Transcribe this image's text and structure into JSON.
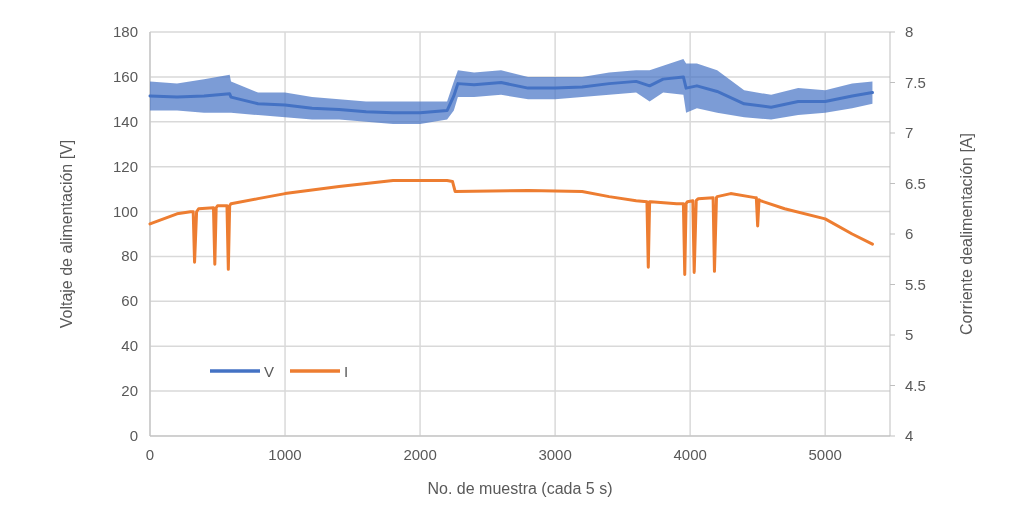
{
  "chart_data": {
    "type": "line",
    "xlabel": "No. de muestra (cada 5 s)",
    "ylabel": "Voltaje de alimentación [V]",
    "y2label": "Corriente  dealimentación [A]",
    "xlim": [
      0,
      5480
    ],
    "xticks": [
      0,
      1000,
      2000,
      3000,
      4000,
      5000
    ],
    "ylim": [
      0,
      180
    ],
    "yticks": [
      0,
      20,
      40,
      60,
      80,
      100,
      120,
      140,
      160,
      180
    ],
    "y2lim": [
      4,
      8
    ],
    "y2ticks": [
      4,
      4.5,
      5,
      5.5,
      6,
      6.5,
      7,
      7.5,
      8
    ],
    "grid": true,
    "legend": "bottom left",
    "line_style": "solid",
    "series": [
      {
        "name": "V",
        "color": "#4472c4",
        "x": [
          0,
          200,
          400,
          590,
          600,
          800,
          1000,
          1200,
          1400,
          1600,
          1800,
          2000,
          2200,
          2250,
          2280,
          2400,
          2600,
          2800,
          3000,
          3200,
          3400,
          3600,
          3700,
          3800,
          3950,
          3970,
          4050,
          4200,
          4400,
          4600,
          4800,
          5000,
          5200,
          5350
        ],
        "values": [
          151.5,
          151,
          151.5,
          152.5,
          151,
          148,
          147.5,
          146,
          145.5,
          144.5,
          144,
          144,
          145,
          151.5,
          157,
          156.5,
          157.5,
          155,
          155,
          155.5,
          157,
          158,
          156,
          159,
          160,
          155,
          156,
          153.5,
          148,
          146.5,
          149,
          149,
          151.5,
          153
        ],
        "lower": [
          145,
          145,
          144,
          144,
          144,
          143,
          142,
          141,
          141,
          140,
          139,
          139,
          141,
          145,
          151,
          151,
          152,
          150,
          150,
          151,
          152,
          153,
          149,
          153,
          152,
          144,
          146,
          144,
          142,
          141,
          143,
          144,
          146,
          148
        ],
        "upper": [
          158,
          157,
          159,
          161,
          158,
          153,
          153,
          151,
          150,
          149,
          149,
          149,
          149,
          158,
          163,
          162,
          163,
          160,
          160,
          160,
          162,
          163,
          163,
          165,
          168,
          166,
          166,
          163,
          154,
          152,
          155,
          154,
          157,
          158
        ]
      },
      {
        "name": "I",
        "color": "#ed7d31",
        "axis": "y2",
        "x": [
          0,
          200,
          300,
          320,
          330,
          345,
          360,
          470,
          480,
          490,
          500,
          570,
          580,
          590,
          600,
          800,
          1000,
          1400,
          1800,
          2200,
          2240,
          2260,
          2800,
          3200,
          3400,
          3600,
          3680,
          3690,
          3700,
          3710,
          3900,
          3950,
          3960,
          3970,
          3980,
          4020,
          4030,
          4045,
          4060,
          4170,
          4180,
          4195,
          4200,
          4300,
          4480,
          4490,
          4500,
          4510,
          4520,
          4700,
          5000,
          5200,
          5350
        ],
        "values": [
          6.1,
          6.2,
          6.22,
          6.22,
          5.72,
          6.22,
          6.25,
          6.26,
          5.7,
          6.26,
          6.28,
          6.28,
          5.65,
          6.28,
          6.3,
          6.35,
          6.4,
          6.47,
          6.53,
          6.53,
          6.52,
          6.42,
          6.43,
          6.42,
          6.37,
          6.33,
          6.32,
          5.67,
          6.32,
          6.32,
          6.3,
          6.3,
          5.6,
          6.3,
          6.32,
          6.33,
          5.62,
          6.33,
          6.35,
          6.36,
          5.63,
          6.36,
          6.37,
          6.4,
          6.36,
          6.36,
          6.08,
          6.34,
          6.33,
          6.25,
          6.15,
          6.0,
          5.9
        ]
      }
    ]
  }
}
